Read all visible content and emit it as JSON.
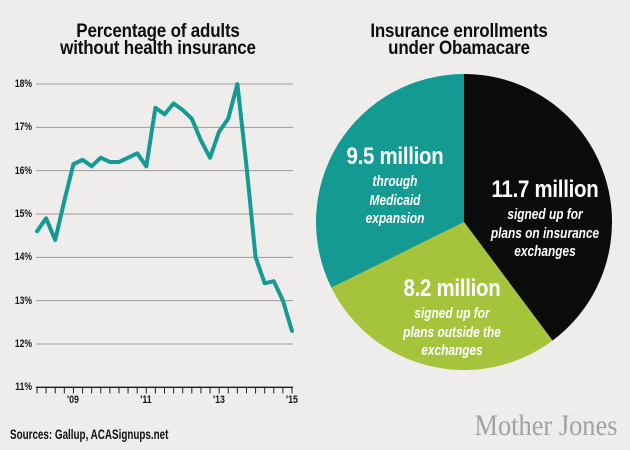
{
  "ui": {
    "line_chart": {
      "title_line1": "Percentage of adults",
      "title_line2": "without health insurance",
      "y_tick_labels": [
        {
          "label": "18%",
          "value": 18
        },
        {
          "label": "17%",
          "value": 17
        },
        {
          "label": "16%",
          "value": 16
        },
        {
          "label": "15%",
          "value": 15
        },
        {
          "label": "14%",
          "value": 14
        },
        {
          "label": "13%",
          "value": 13
        },
        {
          "label": "12%",
          "value": 12
        },
        {
          "label": "11%",
          "value": 11
        }
      ],
      "x_tick_labels": [
        {
          "label": "'09",
          "quarter_index": 4
        },
        {
          "label": "'11",
          "quarter_index": 12
        },
        {
          "label": "'13",
          "quarter_index": 20
        },
        {
          "label": "'15",
          "quarter_index": 28
        }
      ]
    },
    "pie_chart": {
      "title_line1": "Insurance enrollments",
      "title_line2": "under Obamacare",
      "labels": [
        {
          "value": "9.5 million",
          "desc": [
            "through",
            "Medicaid",
            "expansion"
          ]
        },
        {
          "value": "11.7 million",
          "desc": [
            "signed up for",
            "plans on insurance",
            "exchanges"
          ]
        },
        {
          "value": "8.2 million",
          "desc": [
            "signed up for",
            "plans outside the",
            "exchanges"
          ]
        }
      ]
    },
    "footer": {
      "sources": "Sources: Gallup, ACASignups.net",
      "brand": "Mother Jones"
    }
  },
  "colors": {
    "background": "#eeedeb",
    "teal": "#149a92",
    "green": "#a6c33c",
    "black_slice": "#0b0b0b",
    "gridline": "#9a9a98",
    "axis": "#1c1c1c",
    "label_white": "#ffffff",
    "brand_gray": "#a2a2a4"
  },
  "chart_data": [
    {
      "type": "line",
      "title": "Percentage of adults without health insurance",
      "x_unit": "quarter",
      "x": [
        "2008 Q1",
        "2008 Q2",
        "2008 Q3",
        "2008 Q4",
        "2009 Q1",
        "2009 Q2",
        "2009 Q3",
        "2009 Q4",
        "2010 Q1",
        "2010 Q2",
        "2010 Q3",
        "2010 Q4",
        "2011 Q1",
        "2011 Q2",
        "2011 Q3",
        "2011 Q4",
        "2012 Q1",
        "2012 Q2",
        "2012 Q3",
        "2012 Q4",
        "2013 Q1",
        "2013 Q2",
        "2013 Q3",
        "2013 Q4",
        "2014 Q1",
        "2014 Q2",
        "2014 Q3",
        "2014 Q4",
        "2015 Q1"
      ],
      "values": [
        14.6,
        14.9,
        14.4,
        15.3,
        16.15,
        16.25,
        16.1,
        16.3,
        16.2,
        16.2,
        16.3,
        16.4,
        16.1,
        17.45,
        17.3,
        17.55,
        17.4,
        17.2,
        16.7,
        16.3,
        16.9,
        17.2,
        18.0,
        16.1,
        14.0,
        13.4,
        13.45,
        13.0,
        12.3
      ],
      "ylim": [
        11,
        18
      ],
      "yticks": [
        18,
        17,
        16,
        15,
        14,
        13,
        12,
        11
      ],
      "ytick_format": "percent",
      "xticks": [
        "'09",
        "'11",
        "'13",
        "'15"
      ],
      "grid": true,
      "line_color": "#149a92"
    },
    {
      "type": "pie",
      "title": "Insurance enrollments under Obamacare",
      "unit": "million people",
      "start": "12 o'clock",
      "direction": "clockwise",
      "slices": [
        {
          "name": "exchange-signups",
          "label": "11.7 million signed up for plans on insurance exchanges",
          "value": 11.7,
          "color": "#0b0b0b"
        },
        {
          "name": "off-exchange-signups",
          "label": "8.2 million signed up for plans outside the exchanges",
          "value": 8.2,
          "color": "#a6c33c"
        },
        {
          "name": "medicaid-expansion",
          "label": "9.5 million through Medicaid expansion",
          "value": 9.5,
          "color": "#149a92"
        }
      ]
    }
  ]
}
